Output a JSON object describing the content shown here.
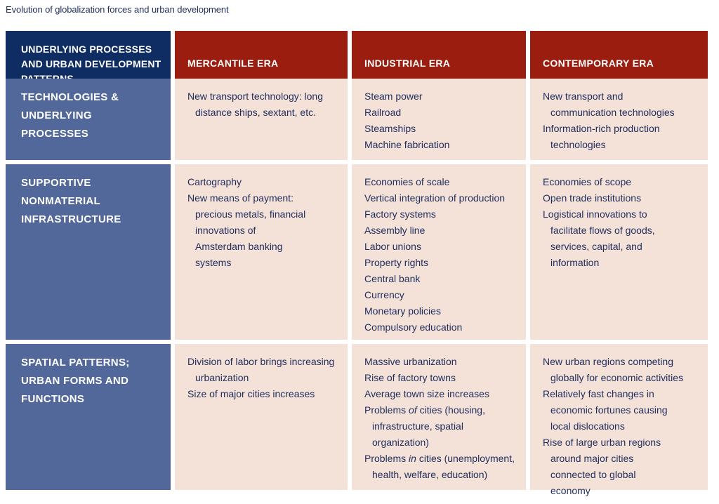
{
  "caption": "Evolution of globalization forces and urban development",
  "header": {
    "corner": "UNDERLYING PROCESSES AND URBAN DEVELOPMENT PATTERNS",
    "eras": [
      "MERCANTILE ERA",
      "INDUSTRIAL ERA",
      "CONTEMPORARY ERA"
    ]
  },
  "rows": [
    {
      "label": "TECHNOLOGIES & UNDERLYING PROCESSES",
      "mercantile": [
        "New transport technology: long distance ships, sextant, etc."
      ],
      "industrial": [
        "Steam power",
        "Railroad",
        "Steamships",
        "Machine fabrication"
      ],
      "contemporary": [
        "New transport and communication technologies",
        "Information-rich production technologies"
      ]
    },
    {
      "label": "SUPPORTIVE NONMATERIAL INFRASTRUCTURE",
      "mercantile": [
        "Cartography",
        "New means of payment: precious metals, financial innovations of Amsterdam banking systems"
      ],
      "industrial": [
        "Economies of scale",
        "Vertical integration of production",
        "Factory systems",
        "Assembly line",
        "Labor unions",
        "Property rights",
        "Central bank",
        "Currency",
        "Monetary policies",
        "Compulsory education"
      ],
      "contemporary": [
        "Economies of scope",
        "Open trade institutions",
        "Logistical innovations to facilitate flows of goods, services, capital, and information"
      ]
    },
    {
      "label": "SPATIAL PATTERNS; URBAN FORMS AND FUNCTIONS",
      "mercantile": [
        "Division of labor brings increasing urbanization",
        "Size of major cities increases"
      ],
      "industrial": [
        "Massive urbanization",
        "Rise of factory towns",
        "Average town size increases",
        "Problems of cities (housing, infrastructure, spatial organization)",
        "Problems in cities (unemployment, health, welfare, education)"
      ],
      "contemporary": [
        "New urban regions competing globally for economic activities",
        "Relatively fast changes in economic fortunes causing local dislocations",
        "Rise of large urban regions around major cities connected to global economy"
      ]
    }
  ]
}
